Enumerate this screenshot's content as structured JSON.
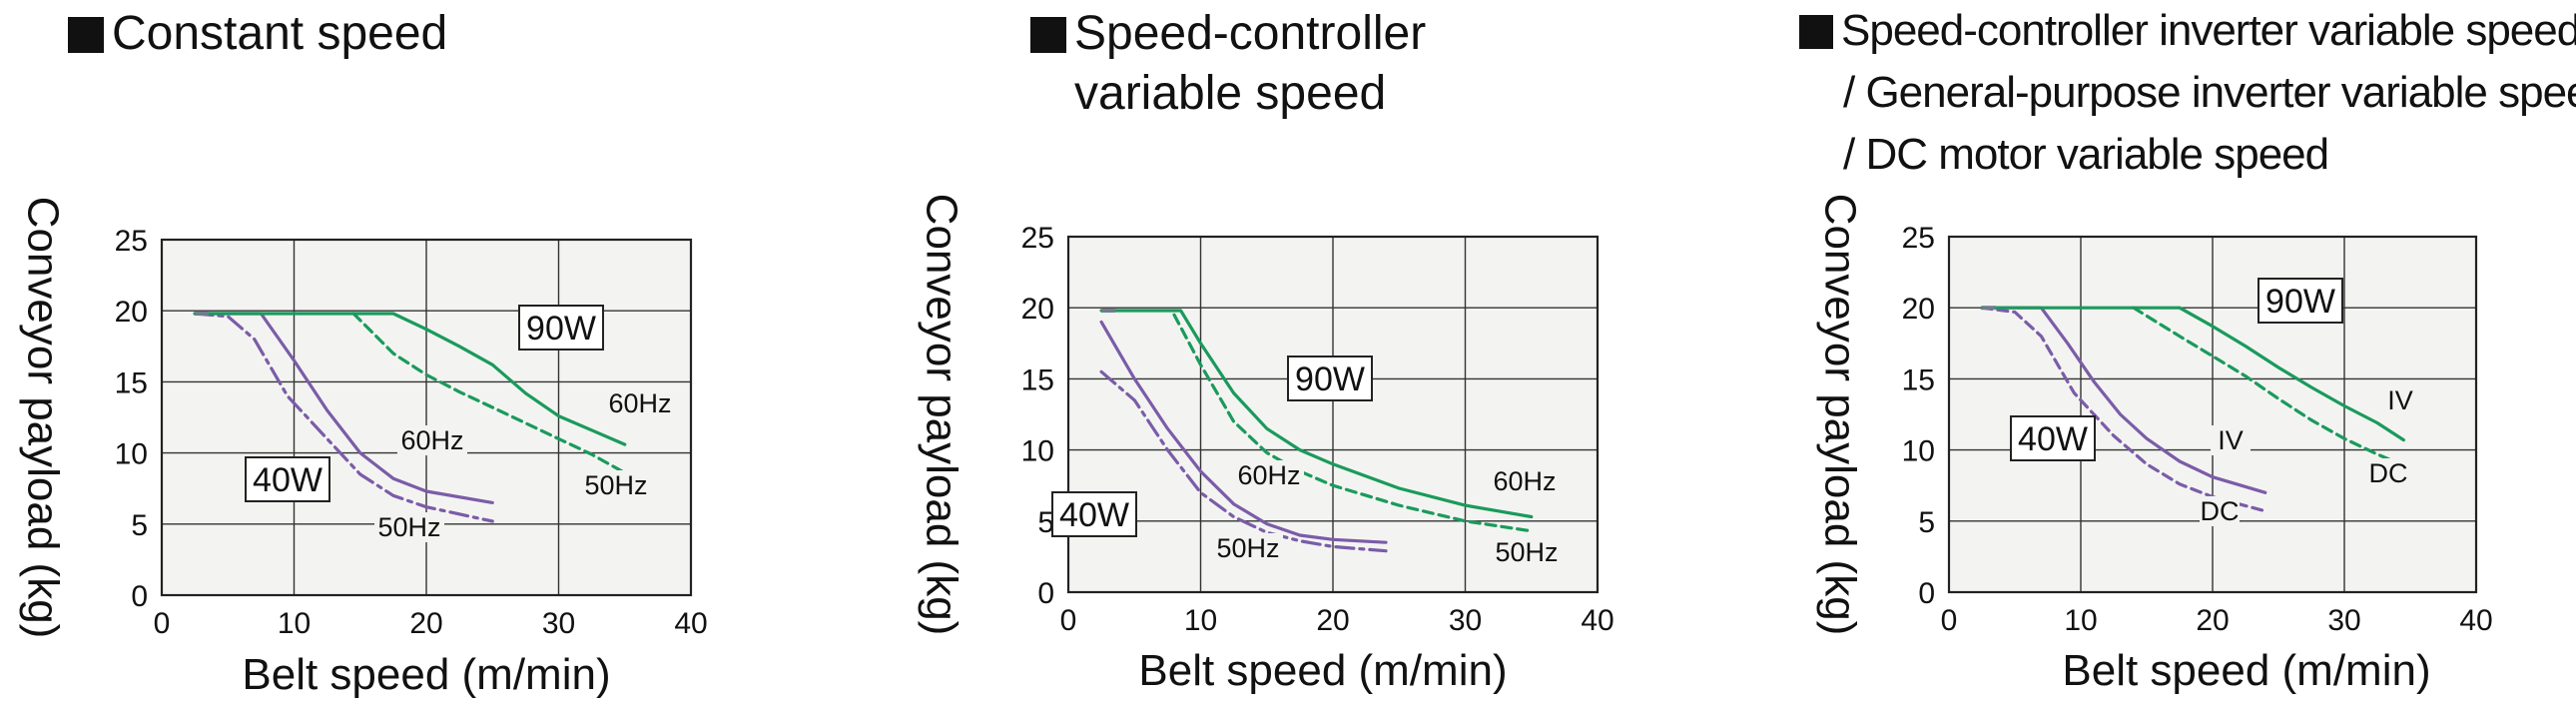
{
  "chart_data": [
    {
      "type": "line",
      "title": [
        "Constant speed"
      ],
      "xlabel": "Belt speed (m/min)",
      "ylabel": "Conveyor payload (kg)",
      "xlim": [
        0,
        40
      ],
      "ylim": [
        0,
        25
      ],
      "xticks": [
        "0",
        "10",
        "20",
        "30",
        "40"
      ],
      "yticks": [
        "0",
        "5",
        "10",
        "15",
        "20",
        "25"
      ],
      "grid": true,
      "series": [
        {
          "name": "60Hz",
          "group": "40W",
          "color": "#7b5ca8",
          "dash": "solid",
          "x": [
            2.5,
            7.5,
            10,
            12.5,
            15,
            17.5,
            20,
            25
          ],
          "y": [
            19.8,
            19.8,
            16.5,
            13,
            10,
            8.2,
            7.3,
            6.5
          ]
        },
        {
          "name": "50Hz",
          "group": "40W",
          "color": "#7b5ca8",
          "dash": "dashdot",
          "x": [
            2.5,
            5,
            7,
            9.5,
            12.5,
            15,
            17.5,
            20,
            25
          ],
          "y": [
            19.8,
            19.6,
            18,
            14,
            11,
            8.5,
            7,
            6.2,
            5.2
          ]
        },
        {
          "name": "60Hz",
          "group": "90W",
          "color": "#1a9a5c",
          "dash": "solid",
          "x": [
            2.5,
            17.5,
            20,
            22.5,
            25,
            27.5,
            30,
            32.5,
            35
          ],
          "y": [
            19.8,
            19.8,
            18.7,
            17.5,
            16.2,
            14.2,
            12.6,
            11.6,
            10.6
          ]
        },
        {
          "name": "50Hz",
          "group": "90W",
          "color": "#1a9a5c",
          "dash": "dashed",
          "x": [
            14.5,
            17.5,
            20,
            22.5,
            25,
            27.5,
            30,
            32.5,
            35
          ],
          "y": [
            19.8,
            17,
            15.5,
            14.3,
            13.2,
            12.1,
            11,
            9.9,
            8.6
          ]
        }
      ],
      "annotations": [
        "90W",
        "60Hz",
        "50Hz",
        "40W",
        "60Hz",
        "50Hz"
      ]
    },
    {
      "type": "line",
      "title": [
        "Speed-controller",
        "variable speed"
      ],
      "xlabel": "Belt speed (m/min)",
      "ylabel": "Conveyor payload (kg)",
      "xlim": [
        0,
        40
      ],
      "ylim": [
        0,
        25
      ],
      "xticks": [
        "0",
        "10",
        "20",
        "30",
        "40"
      ],
      "yticks": [
        "0",
        "5",
        "10",
        "15",
        "20",
        "25"
      ],
      "grid": true,
      "series": [
        {
          "name": "60Hz",
          "group": "90W",
          "color": "#1a9a5c",
          "dash": "solid",
          "x": [
            2.5,
            8.5,
            10,
            12.5,
            15,
            17.5,
            20,
            25,
            30,
            35
          ],
          "y": [
            19.8,
            19.8,
            17.5,
            14,
            11.5,
            10,
            9,
            7.3,
            6.1,
            5.3
          ]
        },
        {
          "name": "50Hz",
          "group": "90W",
          "color": "#1a9a5c",
          "dash": "dashed",
          "x": [
            8,
            10,
            12.5,
            15,
            17.5,
            20,
            25,
            30,
            35
          ],
          "y": [
            19.5,
            16,
            12,
            9.8,
            8.5,
            7.5,
            6.1,
            5,
            4.3
          ]
        },
        {
          "name": "60Hz",
          "group": "40W",
          "color": "#7b5ca8",
          "dash": "solid",
          "x": [
            2.5,
            5,
            7.5,
            10,
            12.5,
            15,
            17.5,
            20,
            24
          ],
          "y": [
            19,
            15,
            11.5,
            8.5,
            6.2,
            4.8,
            4,
            3.7,
            3.5
          ]
        },
        {
          "name": "50Hz",
          "group": "40W",
          "color": "#7b5ca8",
          "dash": "dashdot",
          "x": [
            2.5,
            5,
            7.5,
            10,
            12.5,
            15,
            17.5,
            20,
            24
          ],
          "y": [
            15.5,
            13.5,
            10,
            7,
            5.3,
            4.2,
            3.6,
            3.2,
            2.9
          ]
        }
      ],
      "annotations": [
        "90W",
        "60Hz",
        "50Hz",
        "40W",
        "60Hz",
        "50Hz"
      ]
    },
    {
      "type": "line",
      "title": [
        "Speed-controller inverter variable speed",
        "/ General-purpose inverter variable speed",
        "/ DC motor variable speed"
      ],
      "xlabel": "Belt speed (m/min)",
      "ylabel": "Conveyor payload (kg)",
      "xlim": [
        0,
        40
      ],
      "ylim": [
        0,
        25
      ],
      "xticks": [
        "0",
        "10",
        "20",
        "30",
        "40"
      ],
      "yticks": [
        "0",
        "5",
        "10",
        "15",
        "20",
        "25"
      ],
      "grid": true,
      "series": [
        {
          "name": "IV",
          "group": "40W",
          "color": "#7b5ca8",
          "dash": "solid",
          "x": [
            2.5,
            7,
            9,
            11,
            13,
            15,
            17.5,
            20,
            24
          ],
          "y": [
            20,
            20,
            17.5,
            14.8,
            12.5,
            10.8,
            9.2,
            8.1,
            7
          ]
        },
        {
          "name": "DC",
          "group": "40W",
          "color": "#7b5ca8",
          "dash": "dashed",
          "x": [
            2.5,
            5,
            7,
            9.5,
            12.5,
            15,
            17.5,
            20,
            24
          ],
          "y": [
            20,
            19.7,
            18,
            14,
            11,
            9,
            7.6,
            6.7,
            5.7
          ]
        },
        {
          "name": "IV",
          "group": "90W",
          "color": "#1a9a5c",
          "dash": "solid",
          "x": [
            2.5,
            17.5,
            20,
            22.5,
            25,
            27.5,
            30,
            32.5,
            34.5
          ],
          "y": [
            20,
            20,
            18.7,
            17.3,
            15.8,
            14.4,
            13.1,
            11.9,
            10.7
          ]
        },
        {
          "name": "DC",
          "group": "90W",
          "color": "#1a9a5c",
          "dash": "dashed",
          "x": [
            14,
            17.5,
            20,
            22.5,
            25,
            27.5,
            30,
            32.5,
            34.5
          ],
          "y": [
            20,
            18,
            16.6,
            15.2,
            13.6,
            12.1,
            10.8,
            9.7,
            8.9
          ]
        }
      ],
      "annotations": [
        "90W",
        "IV",
        "DC",
        "40W",
        "IV",
        "DC"
      ]
    }
  ],
  "style": {
    "plot_background": "#f3f4f1",
    "grid_color": "#333333",
    "green": "#1a9a5c",
    "purple": "#7b5ca8",
    "gray_start": "#6e7d8c"
  }
}
